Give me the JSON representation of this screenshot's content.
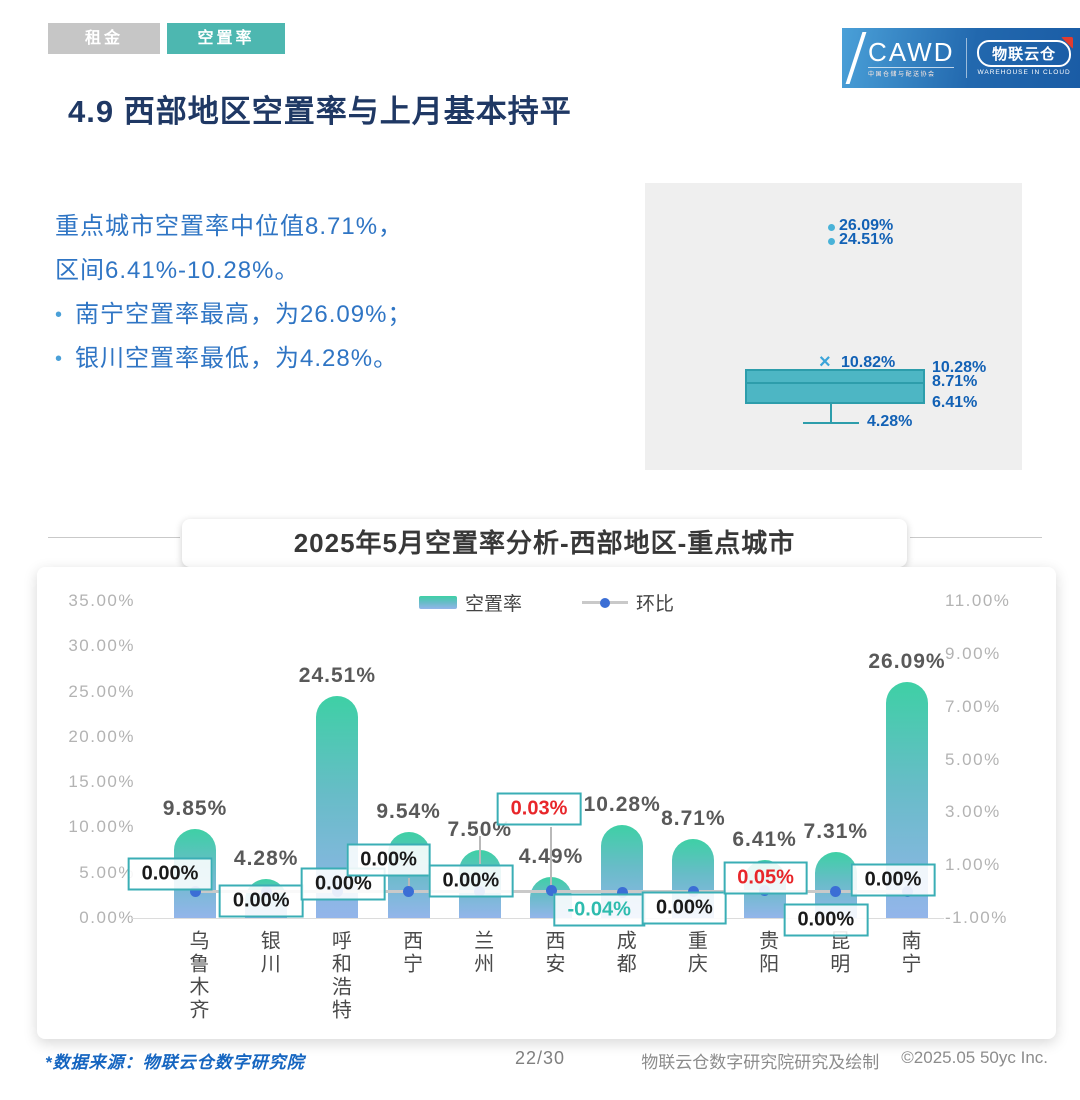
{
  "tabs": {
    "rent": "租金",
    "vacancy": "空置率"
  },
  "logo": {
    "cawd": "CAWD",
    "cawd_sub": "中国仓储与配送协会",
    "cloud_name": "物联云仓",
    "cloud_sub": "WAREHOUSE IN CLOUD"
  },
  "page_title": "4.9 西部地区空置率与上月基本持平",
  "summary": {
    "line1": "重点城市空置率中位值8.71%，",
    "line2": "区间6.41%-10.28%。",
    "bullet1": "南宁空置率最高，为26.09%；",
    "bullet2": "银川空置率最低，为4.28%。"
  },
  "boxplot": {
    "outliers": [
      {
        "label": "26.09%",
        "value": 26.09
      },
      {
        "label": "24.51%",
        "value": 24.51
      }
    ],
    "mean": {
      "label": "10.82%",
      "value": 10.82
    },
    "q3": {
      "label": "10.28%",
      "value": 10.28
    },
    "median": {
      "label": "8.71%",
      "value": 8.71
    },
    "q1": {
      "label": "6.41%",
      "value": 6.41
    },
    "min": {
      "label": "4.28%",
      "value": 4.28
    }
  },
  "chart_data": {
    "type": "bar",
    "title": "2025年5月空置率分析-西部地区-重点城市",
    "categories": [
      "乌鲁木齐",
      "银川",
      "呼和浩特",
      "西宁",
      "兰州",
      "西安",
      "成都",
      "重庆",
      "贵阳",
      "昆明",
      "南宁"
    ],
    "series": [
      {
        "name": "空置率",
        "type": "bar",
        "axis": "left",
        "values": [
          9.85,
          4.28,
          24.51,
          9.54,
          7.5,
          4.49,
          10.28,
          8.71,
          6.41,
          7.31,
          26.09
        ],
        "labels": [
          "9.85%",
          "4.28%",
          "24.51%",
          "9.54%",
          "7.50%",
          "4.49%",
          "10.28%",
          "8.71%",
          "6.41%",
          "7.31%",
          "26.09%"
        ]
      },
      {
        "name": "环比",
        "type": "line",
        "axis": "right",
        "values": [
          0.0,
          0.0,
          0.0,
          0.0,
          0.0,
          0.03,
          -0.04,
          0.0,
          0.05,
          0.0,
          0.0
        ],
        "labels": [
          "0.00%",
          "0.00%",
          "0.00%",
          "0.00%",
          "0.00%",
          "0.03%",
          "-0.04%",
          "0.00%",
          "0.05%",
          "0.00%",
          "0.00%"
        ],
        "label_styles": [
          "zero",
          "zero",
          "zero",
          "zero",
          "zero",
          "up",
          "down",
          "zero",
          "up",
          "zero",
          "zero"
        ],
        "label_offsets": [
          [
            -25,
            -18
          ],
          [
            -5,
            9
          ],
          [
            6,
            -8
          ],
          [
            -20,
            -32
          ],
          [
            -9,
            -11
          ],
          [
            -12,
            -82
          ],
          [
            -23,
            17
          ],
          [
            -9,
            16
          ],
          [
            1,
            -12
          ],
          [
            -10,
            28
          ],
          [
            -14,
            -12
          ]
        ],
        "leaders": [
          3,
          5
        ]
      }
    ],
    "left_axis": {
      "min": 0,
      "max": 35,
      "tick_values": [
        35,
        30,
        25,
        20,
        15,
        10,
        5,
        0
      ],
      "tick_labels": [
        "35.00%",
        "30.00%",
        "25.00%",
        "20.00%",
        "15.00%",
        "10.00%",
        "5.00%",
        "0.00%"
      ]
    },
    "right_axis": {
      "min": -1,
      "max": 11,
      "tick_values": [
        11,
        9,
        7,
        5,
        3,
        1,
        -1
      ],
      "tick_labels": [
        "11.00%",
        "9.00%",
        "7.00%",
        "5.00%",
        "3.00%",
        "1.00%",
        "-1.00%"
      ]
    },
    "legend_position": "top-center",
    "grid": false,
    "stems": [
      4
    ]
  },
  "footer": {
    "source": "*数据来源：物联云仓数字研究院",
    "page": "22/30",
    "credit": "物联云仓数字研究院研究及绘制",
    "copyright": "©2025.05 50yc Inc."
  },
  "colors": {
    "accent_teal": "#4db7b0",
    "title_navy": "#1f3864",
    "text_blue": "#2f75c4",
    "bar_top": "#3ed0a5",
    "bar_bottom": "#93b5ea",
    "line_gray": "#c9c9c9",
    "dot_blue": "#3b6ed5",
    "box_border": "#3aaeb5",
    "up_red": "#e8262a",
    "down_teal": "#2fbcae",
    "boxplot_fill": "#4db6c4",
    "boxplot_stroke": "#2d9dab",
    "boxplot_label": "#1261b5"
  }
}
